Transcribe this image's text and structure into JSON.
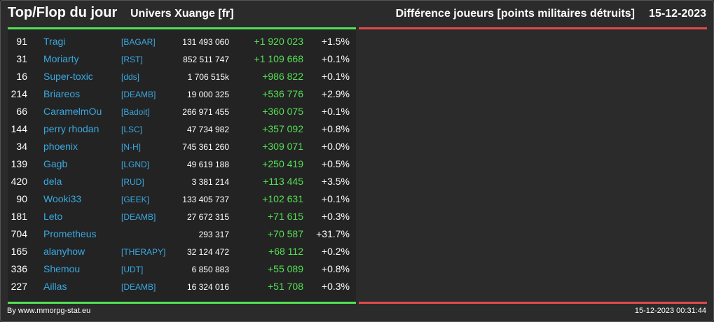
{
  "header": {
    "title": "Top/Flop du jour",
    "universe": "Univers Xuange [fr]",
    "metric": "Différence joueurs [points militaires détruits]",
    "date": "15-12-2023"
  },
  "colors": {
    "background": "#2b2b2b",
    "top_accent": "#55e055",
    "flop_accent": "#e04a4a",
    "link": "#3aa8e0",
    "positive": "#55e055"
  },
  "rows": [
    {
      "rank": "91",
      "name": "Tragi",
      "ally": "[BAGAR]",
      "points": "131 493 060",
      "diff": "+1 920 023",
      "pct": "+1.5%"
    },
    {
      "rank": "31",
      "name": "Moriarty",
      "ally": "[RST]",
      "points": "852 511 747",
      "diff": "+1 109 668",
      "pct": "+0.1%"
    },
    {
      "rank": "16",
      "name": "Super-toxic",
      "ally": "[dds]",
      "points": "1 706 515k",
      "diff": "+986 822",
      "pct": "+0.1%"
    },
    {
      "rank": "214",
      "name": "Briareos",
      "ally": "[DEAMB]",
      "points": "19 000 325",
      "diff": "+536 776",
      "pct": "+2.9%"
    },
    {
      "rank": "66",
      "name": "CaramelmOu",
      "ally": "[Badoit]",
      "points": "266 971 455",
      "diff": "+360 075",
      "pct": "+0.1%"
    },
    {
      "rank": "144",
      "name": "perry rhodan",
      "ally": "[LSC]",
      "points": "47 734 982",
      "diff": "+357 092",
      "pct": "+0.8%"
    },
    {
      "rank": "34",
      "name": "phoenix",
      "ally": "[N-H]",
      "points": "745 361 260",
      "diff": "+309 071",
      "pct": "+0.0%"
    },
    {
      "rank": "139",
      "name": "Gagb",
      "ally": "[LGND]",
      "points": "49 619 188",
      "diff": "+250 419",
      "pct": "+0.5%"
    },
    {
      "rank": "420",
      "name": "dela",
      "ally": "[RUD]",
      "points": "3 381 214",
      "diff": "+113 445",
      "pct": "+3.5%"
    },
    {
      "rank": "90",
      "name": "Wooki33",
      "ally": "[GEEK]",
      "points": "133 405 737",
      "diff": "+102 631",
      "pct": "+0.1%"
    },
    {
      "rank": "181",
      "name": "Leto",
      "ally": "[DEAMB]",
      "points": "27 672 315",
      "diff": "+71 615",
      "pct": "+0.3%"
    },
    {
      "rank": "704",
      "name": "Prometheus",
      "ally": "",
      "points": "293 317",
      "diff": "+70 587",
      "pct": "+31.7%"
    },
    {
      "rank": "165",
      "name": "alanyhow",
      "ally": "[THERAPY]",
      "points": "32 124 472",
      "diff": "+68 112",
      "pct": "+0.2%"
    },
    {
      "rank": "336",
      "name": "Shemou",
      "ally": "[UDT]",
      "points": "6 850 883",
      "diff": "+55 089",
      "pct": "+0.8%"
    },
    {
      "rank": "227",
      "name": "Aillas",
      "ally": "[DEAMB]",
      "points": "16 324 016",
      "diff": "+51 708",
      "pct": "+0.3%"
    }
  ],
  "footer": {
    "credit": "By www.mmorpg-stat.eu",
    "timestamp": "15-12-2023 00:31:44"
  }
}
